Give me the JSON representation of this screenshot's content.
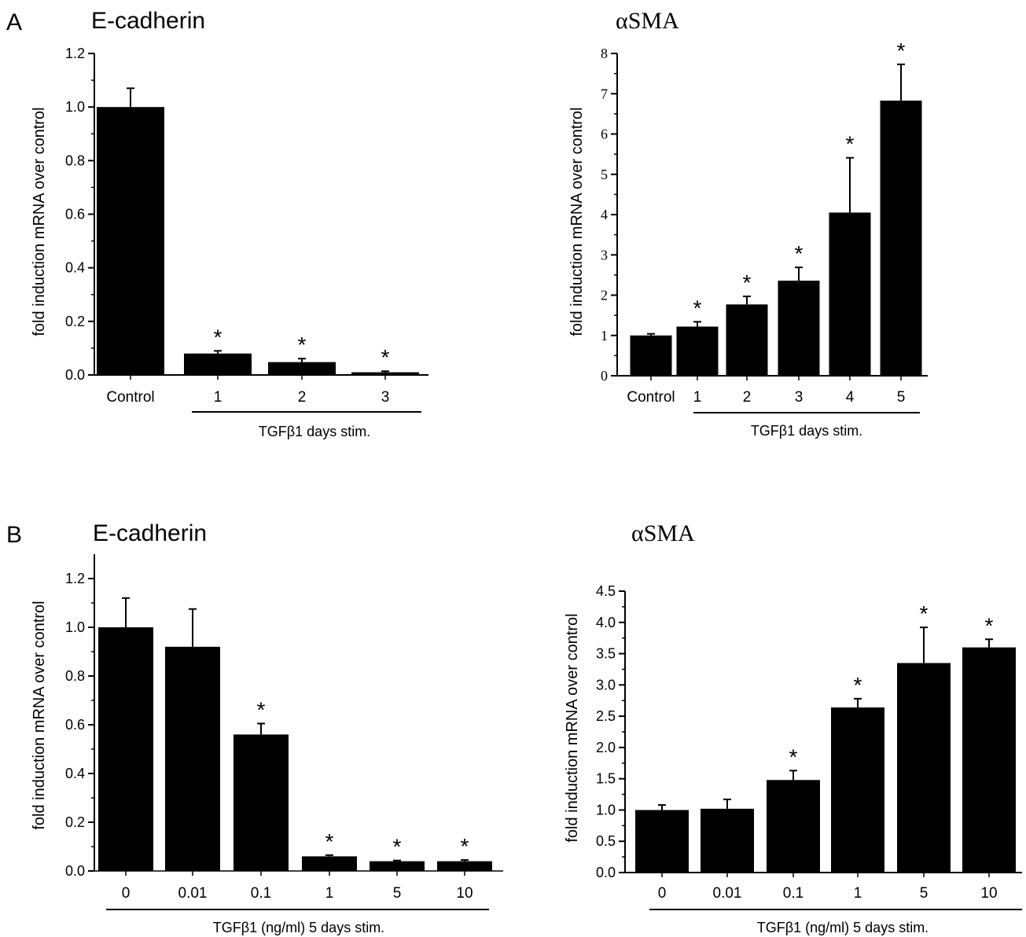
{
  "figure": {
    "panel_labels": [
      "A",
      "B"
    ]
  },
  "colors": {
    "bar": "#000000",
    "axis": "#000000",
    "background": "#ffffff"
  },
  "chart_data": [
    {
      "id": "A-ecad",
      "panel": "A",
      "type": "bar",
      "title": "E-cadherin",
      "ylabel": "fold induction mRNA over control",
      "xlabel": "TGFβ1 days stim.",
      "categories": [
        "Control",
        "1",
        "2",
        "3"
      ],
      "values": [
        1.0,
        0.08,
        0.048,
        0.01
      ],
      "errors": [
        0.07,
        0.01,
        0.013,
        0.004
      ],
      "significant": [
        false,
        true,
        true,
        true
      ],
      "marker": "*",
      "ylim": [
        0,
        1.2
      ],
      "yticks": [
        "0.0",
        "0.2",
        "0.4",
        "0.6",
        "0.8",
        "1.0",
        "1.2"
      ],
      "grid": false,
      "legend": "none"
    },
    {
      "id": "A-asma",
      "panel": "A",
      "type": "bar",
      "title": "αSMA",
      "ylabel": "fold induction mRNA over control",
      "xlabel": "TGFβ1 days stim.",
      "categories": [
        "Control",
        "1",
        "2",
        "3",
        "4",
        "5"
      ],
      "values": [
        1.0,
        1.22,
        1.77,
        2.36,
        4.05,
        6.83
      ],
      "errors": [
        0.04,
        0.12,
        0.2,
        0.33,
        1.36,
        0.9
      ],
      "significant": [
        false,
        true,
        true,
        true,
        true,
        true
      ],
      "marker": "*",
      "ylim": [
        0,
        8
      ],
      "yticks": [
        "0",
        "1",
        "2",
        "3",
        "4",
        "5",
        "6",
        "7",
        "8"
      ],
      "grid": false,
      "legend": "none"
    },
    {
      "id": "B-ecad",
      "panel": "B",
      "type": "bar",
      "title": "E-cadherin",
      "ylabel": "fold induction mRNA over control",
      "xlabel": "TGFβ1 (ng/ml) 5 days stim.",
      "categories": [
        "0",
        "0.01",
        "0.1",
        "1",
        "5",
        "10"
      ],
      "values": [
        1.0,
        0.92,
        0.56,
        0.06,
        0.04,
        0.04
      ],
      "errors": [
        0.12,
        0.155,
        0.045,
        0.005,
        0.003,
        0.005
      ],
      "significant": [
        false,
        false,
        true,
        true,
        true,
        true
      ],
      "marker": "*",
      "ylim": [
        0,
        1.3
      ],
      "yticks": [
        "0.0",
        "0.2",
        "0.4",
        "0.6",
        "0.8",
        "1.0",
        "1.2"
      ],
      "grid": false,
      "legend": "none"
    },
    {
      "id": "B-asma",
      "panel": "B",
      "type": "bar",
      "title": "αSMA",
      "ylabel": "fold induction mRNA over control",
      "xlabel": "TGFβ1 (ng/ml) 5 days stim.",
      "categories": [
        "0",
        "0.01",
        "0.1",
        "1",
        "5",
        "10"
      ],
      "values": [
        1.0,
        1.02,
        1.48,
        2.64,
        3.35,
        3.6
      ],
      "errors": [
        0.08,
        0.15,
        0.15,
        0.14,
        0.57,
        0.13
      ],
      "significant": [
        false,
        false,
        true,
        true,
        true,
        true
      ],
      "marker": "*",
      "ylim": [
        0,
        4.5
      ],
      "yticks": [
        "0.0",
        "0.5",
        "1.0",
        "1.5",
        "2.0",
        "2.5",
        "3.0",
        "3.5",
        "4.0",
        "4.5"
      ],
      "grid": false,
      "legend": "none"
    }
  ]
}
